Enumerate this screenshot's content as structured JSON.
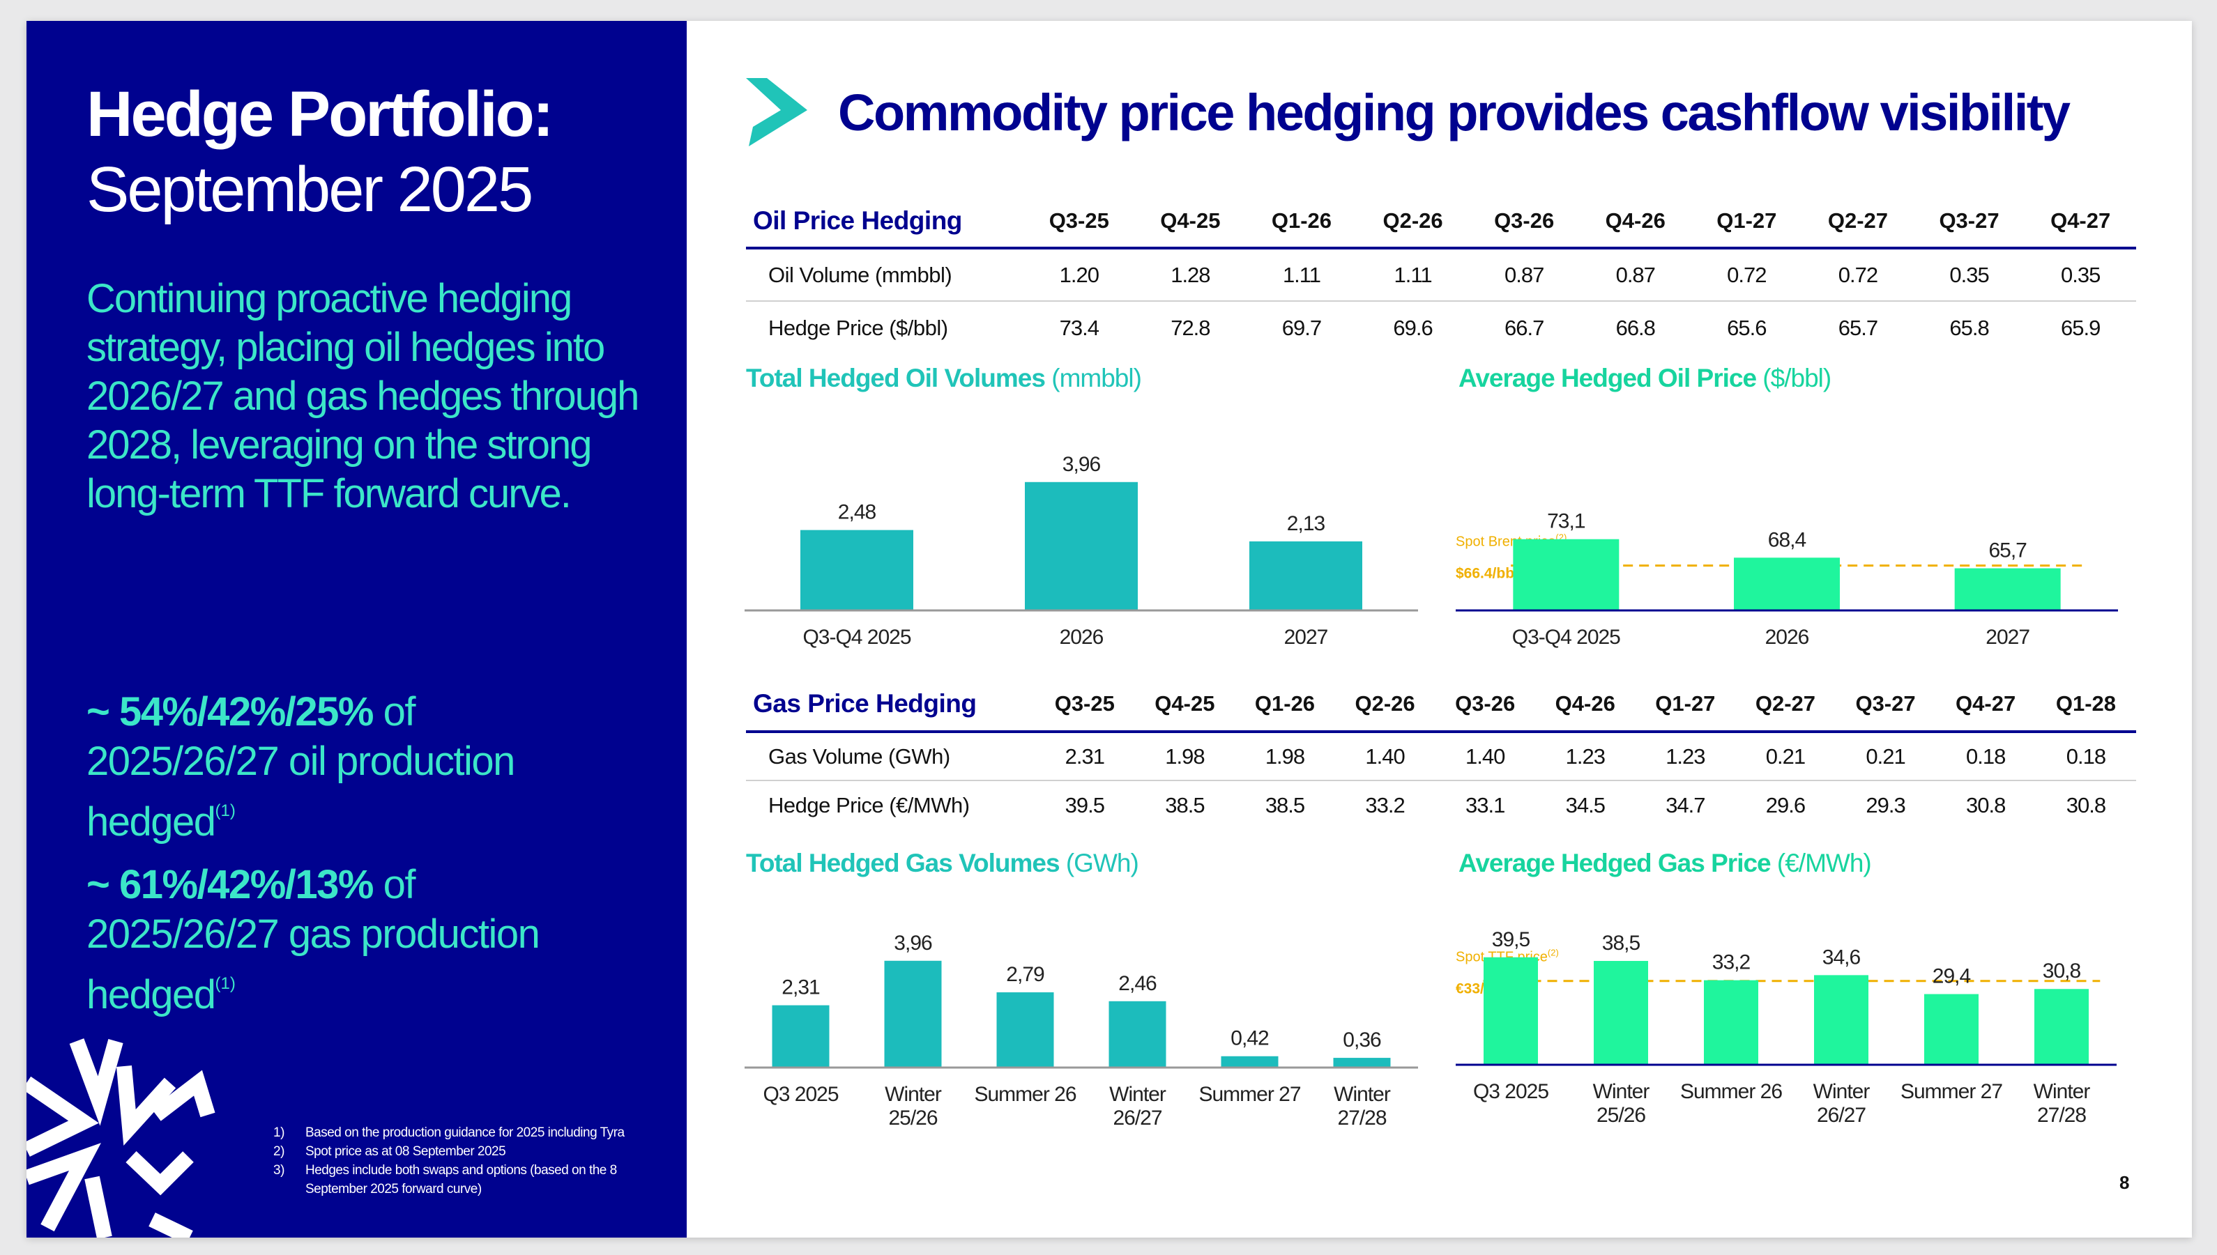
{
  "left_panel": {
    "title": "Hedge Portfolio:",
    "subtitle": "September 2025",
    "body": "Continuing proactive hedging strategy, placing oil hedges into 2026/27 and gas hedges through 2028, leveraging on the strong long-term TTF forward curve.",
    "stat_oil": {
      "highlight": "~ 54%/42%/25%",
      "text_1": " of",
      "text_2": "2025/26/27 oil production",
      "text_3": "hedged",
      "sup": "(1)"
    },
    "stat_gas": {
      "highlight": "~ 61%/42%/13%",
      "text_1": " of",
      "text_2": "2025/26/27 gas production",
      "text_3": "hedged",
      "sup": "(1)"
    },
    "footnotes": [
      {
        "num": "1)",
        "lines": [
          "Based on the production guidance for 2025 including Tyra"
        ]
      },
      {
        "num": "2)",
        "lines": [
          "Spot price as at  08 September 2025"
        ]
      },
      {
        "num": "3)",
        "lines": [
          "Hedges include both swaps and options (based on the 8",
          "September 2025 forward curve)"
        ]
      }
    ],
    "colors": {
      "background": "#00028f",
      "accent": "#3ce6c8"
    }
  },
  "main_title": "Commodity price hedging provides cashflow visibility",
  "oil_table": {
    "title": "Oil Price Hedging",
    "columns": [
      "Q3-25",
      "Q4-25",
      "Q1-26",
      "Q2-26",
      "Q3-26",
      "Q4-26",
      "Q1-27",
      "Q2-27",
      "Q3-27",
      "Q4-27"
    ],
    "rows": [
      {
        "label": "Oil Volume (mmbbl)",
        "values": [
          "1.20",
          "1.28",
          "1.11",
          "1.11",
          "0.87",
          "0.87",
          "0.72",
          "0.72",
          "0.35",
          "0.35"
        ]
      },
      {
        "label": "Hedge Price ($/bbl)",
        "values": [
          "73.4",
          "72.8",
          "69.7",
          "69.6",
          "66.7",
          "66.8",
          "65.6",
          "65.7",
          "65.8",
          "65.9"
        ]
      }
    ]
  },
  "gas_table": {
    "title": "Gas Price Hedging",
    "columns": [
      "Q3-25",
      "Q4-25",
      "Q1-26",
      "Q2-26",
      "Q3-26",
      "Q4-26",
      "Q1-27",
      "Q2-27",
      "Q3-27",
      "Q4-27",
      "Q1-28"
    ],
    "rows": [
      {
        "label": "Gas Volume (GWh)",
        "values": [
          "2.31",
          "1.98",
          "1.98",
          "1.40",
          "1.40",
          "1.23",
          "1.23",
          "0.21",
          "0.21",
          "0.18",
          "0.18"
        ]
      },
      {
        "label": "Hedge Price (€/MWh)",
        "values": [
          "39.5",
          "38.5",
          "38.5",
          "33.2",
          "33.1",
          "34.5",
          "34.7",
          "29.6",
          "29.3",
          "30.8",
          "30.8"
        ]
      }
    ]
  },
  "chart_titles": {
    "oil_volumes": {
      "bold": "Total Hedged Oil Volumes",
      "unit": " (mmbbl)"
    },
    "oil_price": {
      "bold": "Average Hedged Oil Price",
      "unit": " ($/bbl)"
    },
    "gas_volumes": {
      "bold": "Total Hedged Gas Volumes",
      "unit": " (GWh)"
    },
    "gas_price": {
      "bold": "Average Hedged Gas Price",
      "unit": " (€/MWh)"
    }
  },
  "chart_data": [
    {
      "id": "oil_volumes",
      "type": "bar",
      "title": "Total Hedged Oil Volumes (mmbbl)",
      "categories": [
        [
          "Q3-Q4 2025"
        ],
        [
          "2026"
        ],
        [
          "2027"
        ]
      ],
      "values": [
        2.48,
        3.96,
        2.13
      ],
      "labels": [
        "2,48",
        "3,96",
        "2,13"
      ],
      "ylim": [
        0,
        4.6
      ],
      "color": "#1cbcbc",
      "axis_color": "#999999"
    },
    {
      "id": "oil_price",
      "type": "bar",
      "title": "Average Hedged Oil Price ($/bbl)",
      "categories": [
        [
          "Q3-Q4 2025"
        ],
        [
          "2026"
        ],
        [
          "2027"
        ]
      ],
      "values": [
        73.1,
        68.4,
        65.7
      ],
      "labels": [
        "73,1",
        "68,4",
        "65,7"
      ],
      "ylim": [
        55,
        75
      ],
      "color": "#1ff59d",
      "axis_color": "#00028f",
      "reference": {
        "value": 66.4,
        "label": "Spot Brent price",
        "sup": "(2)",
        "value_label": "$66.4/bbl",
        "color": "#f0b000"
      }
    },
    {
      "id": "gas_volumes",
      "type": "bar",
      "title": "Total Hedged Gas Volumes (GWh)",
      "categories": [
        [
          "Q3 2025"
        ],
        [
          "Winter",
          "25/26"
        ],
        [
          "Summer 26"
        ],
        [
          "Winter",
          "26/27"
        ],
        [
          "Summer 27"
        ],
        [
          "Winter",
          "27/28"
        ]
      ],
      "values": [
        2.31,
        3.96,
        2.79,
        2.46,
        0.42,
        0.36
      ],
      "labels": [
        "2,31",
        "3,96",
        "2,79",
        "2,46",
        "0,42",
        "0,36"
      ],
      "ylim": [
        0,
        4.6
      ],
      "color": "#1cbcbc",
      "axis_color": "#999999"
    },
    {
      "id": "gas_price",
      "type": "bar",
      "title": "Average Hedged Gas Price (€/MWh)",
      "categories": [
        [
          "Q3 2025"
        ],
        [
          "Winter",
          "25/26"
        ],
        [
          "Summer 26"
        ],
        [
          "Winter",
          "26/27"
        ],
        [
          "Summer 27"
        ],
        [
          "Winter",
          "27/28"
        ]
      ],
      "values": [
        39.5,
        38.5,
        33.2,
        34.6,
        29.4,
        30.8
      ],
      "labels": [
        "39,5",
        "38,5",
        "33,2",
        "34,6",
        "29,4",
        "30,8"
      ],
      "ylim": [
        10,
        45
      ],
      "color": "#1ff59d",
      "axis_color": "#00028f",
      "reference": {
        "value": 33,
        "label": "Spot TTF price",
        "sup": "(2)",
        "value_label": "€33/MWh",
        "color": "#f0b000"
      }
    }
  ],
  "page_number": "8"
}
